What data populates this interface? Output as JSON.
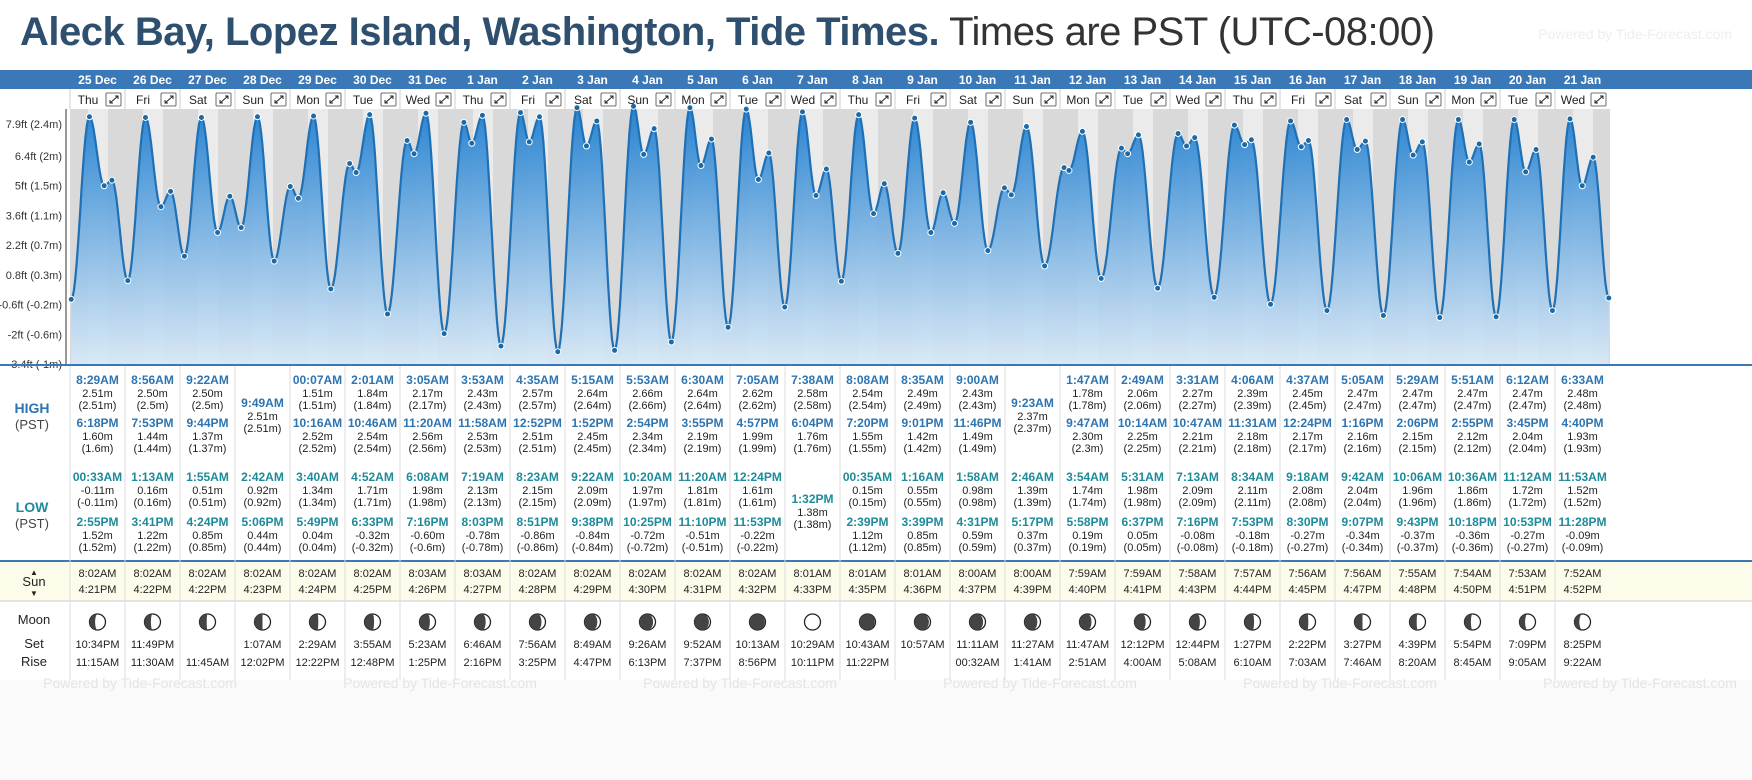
{
  "title": {
    "location": "Aleck Bay, Lopez Island, Washington, Tide Times.",
    "timezone": "Times are PST (UTC-08:00)",
    "powered": "Powered by Tide-Forecast.com"
  },
  "labels": {
    "high": "HIGH",
    "high_tz": "(PST)",
    "low": "LOW",
    "low_tz": "(PST)",
    "sun": "Sun",
    "moon": "Moon",
    "set": "Set",
    "rise": "Rise",
    "footer_powered": "Powered by Tide-Forecast.com"
  },
  "colors": {
    "header_bar": "#3a78b8",
    "curve_fill": "#2a86cf",
    "curve_line": "#1f70b5",
    "day_bg": "#ebebeb",
    "night_bg": "#d9d9d9",
    "high_text": "#2d74b0",
    "low_text": "#1d8b9a",
    "sun_row_bg": "#fdfbea"
  },
  "y_axis_labels": [
    "7.9ft (2.4m)",
    "6.4ft (2m)",
    "5ft (1.5m)",
    "3.6ft (1.1m)",
    "2.2ft (0.7m)",
    "0.8ft (0.3m)",
    "-0.6ft (-0.2m)",
    "-2ft (-0.6m)",
    "-3.4ft (-1m)"
  ],
  "y_axis_values": [
    7.9,
    6.4,
    5,
    3.6,
    2.2,
    0.8,
    -0.6,
    -2,
    -3.4
  ],
  "days": [
    {
      "date": "25 Dec",
      "dow": "Thu",
      "high1": {
        "t": "8:29AM",
        "ft": "2.51m",
        "m": "(2.51m)"
      },
      "high2": {
        "t": "6:18PM",
        "ft": "1.60m",
        "m": "(1.6m)"
      },
      "low1": {
        "t": "00:33AM",
        "ft": "-0.11m",
        "m": "(-0.11m)"
      },
      "low2": {
        "t": "2:55PM",
        "ft": "1.52m",
        "m": "(1.52m)"
      },
      "sunrise": "8:02AM",
      "sunset": "4:21PM",
      "moon_set": "10:34PM",
      "moon_rise": "11:15AM"
    },
    {
      "date": "26 Dec",
      "dow": "Fri",
      "high1": {
        "t": "8:56AM",
        "ft": "2.50m",
        "m": "(2.5m)"
      },
      "high2": {
        "t": "7:53PM",
        "ft": "1.44m",
        "m": "(1.44m)"
      },
      "low1": {
        "t": "1:13AM",
        "ft": "0.16m",
        "m": "(0.16m)"
      },
      "low2": {
        "t": "3:41PM",
        "ft": "1.22m",
        "m": "(1.22m)"
      },
      "sunrise": "8:02AM",
      "sunset": "4:22PM",
      "moon_set": "11:49PM",
      "moon_rise": "11:30AM"
    },
    {
      "date": "27 Dec",
      "dow": "Sat",
      "high1": {
        "t": "9:22AM",
        "ft": "2.50m",
        "m": "(2.5m)"
      },
      "high2": {
        "t": "9:44PM",
        "ft": "1.37m",
        "m": "(1.37m)"
      },
      "low1": {
        "t": "1:55AM",
        "ft": "0.51m",
        "m": "(0.51m)"
      },
      "low2": {
        "t": "4:24PM",
        "ft": "0.85m",
        "m": "(0.85m)"
      },
      "sunrise": "8:02AM",
      "sunset": "4:22PM",
      "moon_set": "",
      "moon_rise": "11:45AM"
    },
    {
      "date": "28 Dec",
      "dow": "Sun",
      "high1": {
        "t": "9:49AM",
        "ft": "2.51m",
        "m": "(2.51m)"
      },
      "high2": null,
      "low1": {
        "t": "2:42AM",
        "ft": "0.92m",
        "m": "(0.92m)"
      },
      "low2": {
        "t": "5:06PM",
        "ft": "0.44m",
        "m": "(0.44m)"
      },
      "sunrise": "8:02AM",
      "sunset": "4:23PM",
      "moon_set": "1:07AM",
      "moon_rise": "12:02PM"
    },
    {
      "date": "29 Dec",
      "dow": "Mon",
      "high1": {
        "t": "00:07AM",
        "ft": "1.51m",
        "m": "(1.51m)"
      },
      "high2": {
        "t": "10:16AM",
        "ft": "2.52m",
        "m": "(2.52m)"
      },
      "low1": {
        "t": "3:40AM",
        "ft": "1.34m",
        "m": "(1.34m)"
      },
      "low2": {
        "t": "5:49PM",
        "ft": "0.04m",
        "m": "(0.04m)"
      },
      "sunrise": "8:02AM",
      "sunset": "4:24PM",
      "moon_set": "2:29AM",
      "moon_rise": "12:22PM"
    },
    {
      "date": "30 Dec",
      "dow": "Tue",
      "high1": {
        "t": "2:01AM",
        "ft": "1.84m",
        "m": "(1.84m)"
      },
      "high2": {
        "t": "10:46AM",
        "ft": "2.54m",
        "m": "(2.54m)"
      },
      "low1": {
        "t": "4:52AM",
        "ft": "1.71m",
        "m": "(1.71m)"
      },
      "low2": {
        "t": "6:33PM",
        "ft": "-0.32m",
        "m": "(-0.32m)"
      },
      "sunrise": "8:02AM",
      "sunset": "4:25PM",
      "moon_set": "3:55AM",
      "moon_rise": "12:48PM"
    },
    {
      "date": "31 Dec",
      "dow": "Wed",
      "high1": {
        "t": "3:05AM",
        "ft": "2.17m",
        "m": "(2.17m)"
      },
      "high2": {
        "t": "11:20AM",
        "ft": "2.56m",
        "m": "(2.56m)"
      },
      "low1": {
        "t": "6:08AM",
        "ft": "1.98m",
        "m": "(1.98m)"
      },
      "low2": {
        "t": "7:16PM",
        "ft": "-0.60m",
        "m": "(-0.6m)"
      },
      "sunrise": "8:03AM",
      "sunset": "4:26PM",
      "moon_set": "5:23AM",
      "moon_rise": "1:25PM"
    },
    {
      "date": "1 Jan",
      "dow": "Thu",
      "high1": {
        "t": "3:53AM",
        "ft": "2.43m",
        "m": "(2.43m)"
      },
      "high2": {
        "t": "11:58AM",
        "ft": "2.53m",
        "m": "(2.53m)"
      },
      "low1": {
        "t": "7:19AM",
        "ft": "2.13m",
        "m": "(2.13m)"
      },
      "low2": {
        "t": "8:03PM",
        "ft": "-0.78m",
        "m": "(-0.78m)"
      },
      "sunrise": "8:03AM",
      "sunset": "4:27PM",
      "moon_set": "6:46AM",
      "moon_rise": "2:16PM"
    },
    {
      "date": "2 Jan",
      "dow": "Fri",
      "high1": {
        "t": "4:35AM",
        "ft": "2.57m",
        "m": "(2.57m)"
      },
      "high2": {
        "t": "12:52PM",
        "ft": "2.51m",
        "m": "(2.51m)"
      },
      "low1": {
        "t": "8:23AM",
        "ft": "2.15m",
        "m": "(2.15m)"
      },
      "low2": {
        "t": "8:51PM",
        "ft": "-0.86m",
        "m": "(-0.86m)"
      },
      "sunrise": "8:02AM",
      "sunset": "4:28PM",
      "moon_set": "7:56AM",
      "moon_rise": "3:25PM"
    },
    {
      "date": "3 Jan",
      "dow": "Sat",
      "high1": {
        "t": "5:15AM",
        "ft": "2.64m",
        "m": "(2.64m)"
      },
      "high2": {
        "t": "1:52PM",
        "ft": "2.45m",
        "m": "(2.45m)"
      },
      "low1": {
        "t": "9:22AM",
        "ft": "2.09m",
        "m": "(2.09m)"
      },
      "low2": {
        "t": "9:38PM",
        "ft": "-0.84m",
        "m": "(-0.84m)"
      },
      "sunrise": "8:02AM",
      "sunset": "4:29PM",
      "moon_set": "8:49AM",
      "moon_rise": "4:47PM"
    },
    {
      "date": "4 Jan",
      "dow": "Sun",
      "high1": {
        "t": "5:53AM",
        "ft": "2.66m",
        "m": "(2.66m)"
      },
      "high2": {
        "t": "2:54PM",
        "ft": "2.34m",
        "m": "(2.34m)"
      },
      "low1": {
        "t": "10:20AM",
        "ft": "1.97m",
        "m": "(1.97m)"
      },
      "low2": {
        "t": "10:25PM",
        "ft": "-0.72m",
        "m": "(-0.72m)"
      },
      "sunrise": "8:02AM",
      "sunset": "4:30PM",
      "moon_set": "9:26AM",
      "moon_rise": "6:13PM"
    },
    {
      "date": "5 Jan",
      "dow": "Mon",
      "high1": {
        "t": "6:30AM",
        "ft": "2.64m",
        "m": "(2.64m)"
      },
      "high2": {
        "t": "3:55PM",
        "ft": "2.19m",
        "m": "(2.19m)"
      },
      "low1": {
        "t": "11:20AM",
        "ft": "1.81m",
        "m": "(1.81m)"
      },
      "low2": {
        "t": "11:10PM",
        "ft": "-0.51m",
        "m": "(-0.51m)"
      },
      "sunrise": "8:02AM",
      "sunset": "4:31PM",
      "moon_set": "9:52AM",
      "moon_rise": "7:37PM"
    },
    {
      "date": "6 Jan",
      "dow": "Tue",
      "high1": {
        "t": "7:05AM",
        "ft": "2.62m",
        "m": "(2.62m)"
      },
      "high2": {
        "t": "4:57PM",
        "ft": "1.99m",
        "m": "(1.99m)"
      },
      "low1": {
        "t": "12:24PM",
        "ft": "1.61m",
        "m": "(1.61m)"
      },
      "low2": {
        "t": "11:53PM",
        "ft": "-0.22m",
        "m": "(-0.22m)"
      },
      "sunrise": "8:02AM",
      "sunset": "4:32PM",
      "moon_set": "10:13AM",
      "moon_rise": "8:56PM"
    },
    {
      "date": "7 Jan",
      "dow": "Wed",
      "high1": {
        "t": "7:38AM",
        "ft": "2.58m",
        "m": "(2.58m)"
      },
      "high2": {
        "t": "6:04PM",
        "ft": "1.76m",
        "m": "(1.76m)"
      },
      "low1": {
        "t": "1:32PM",
        "ft": "1.38m",
        "m": "(1.38m)"
      },
      "low2": null,
      "sunrise": "8:01AM",
      "sunset": "4:33PM",
      "moon_set": "10:29AM",
      "moon_rise": "10:11PM"
    },
    {
      "date": "8 Jan",
      "dow": "Thu",
      "high1": {
        "t": "8:08AM",
        "ft": "2.54m",
        "m": "(2.54m)"
      },
      "high2": {
        "t": "7:20PM",
        "ft": "1.55m",
        "m": "(1.55m)"
      },
      "low1": {
        "t": "00:35AM",
        "ft": "0.15m",
        "m": "(0.15m)"
      },
      "low2": {
        "t": "2:39PM",
        "ft": "1.12m",
        "m": "(1.12m)"
      },
      "sunrise": "8:01AM",
      "sunset": "4:35PM",
      "moon_set": "10:43AM",
      "moon_rise": "11:22PM"
    },
    {
      "date": "9 Jan",
      "dow": "Fri",
      "high1": {
        "t": "8:35AM",
        "ft": "2.49m",
        "m": "(2.49m)"
      },
      "high2": {
        "t": "9:01PM",
        "ft": "1.42m",
        "m": "(1.42m)"
      },
      "low1": {
        "t": "1:16AM",
        "ft": "0.55m",
        "m": "(0.55m)"
      },
      "low2": {
        "t": "3:39PM",
        "ft": "0.85m",
        "m": "(0.85m)"
      },
      "sunrise": "8:01AM",
      "sunset": "4:36PM",
      "moon_set": "10:57AM",
      "moon_rise": ""
    },
    {
      "date": "10 Jan",
      "dow": "Sat",
      "high1": {
        "t": "9:00AM",
        "ft": "2.43m",
        "m": "(2.43m)"
      },
      "high2": {
        "t": "11:46PM",
        "ft": "1.49m",
        "m": "(1.49m)"
      },
      "low1": {
        "t": "1:58AM",
        "ft": "0.98m",
        "m": "(0.98m)"
      },
      "low2": {
        "t": "4:31PM",
        "ft": "0.59m",
        "m": "(0.59m)"
      },
      "sunrise": "8:00AM",
      "sunset": "4:37PM",
      "moon_set": "11:11AM",
      "moon_rise": "00:32AM"
    },
    {
      "date": "11 Jan",
      "dow": "Sun",
      "high1": {
        "t": "9:23AM",
        "ft": "2.37m",
        "m": "(2.37m)"
      },
      "high2": null,
      "low1": {
        "t": "2:46AM",
        "ft": "1.39m",
        "m": "(1.39m)"
      },
      "low2": {
        "t": "5:17PM",
        "ft": "0.37m",
        "m": "(0.37m)"
      },
      "sunrise": "8:00AM",
      "sunset": "4:39PM",
      "moon_set": "11:27AM",
      "moon_rise": "1:41AM"
    },
    {
      "date": "12 Jan",
      "dow": "Mon",
      "high1": {
        "t": "1:47AM",
        "ft": "1.78m",
        "m": "(1.78m)"
      },
      "high2": {
        "t": "9:47AM",
        "ft": "2.30m",
        "m": "(2.3m)"
      },
      "low1": {
        "t": "3:54AM",
        "ft": "1.74m",
        "m": "(1.74m)"
      },
      "low2": {
        "t": "5:58PM",
        "ft": "0.19m",
        "m": "(0.19m)"
      },
      "sunrise": "7:59AM",
      "sunset": "4:40PM",
      "moon_set": "11:47AM",
      "moon_rise": "2:51AM"
    },
    {
      "date": "13 Jan",
      "dow": "Tue",
      "high1": {
        "t": "2:49AM",
        "ft": "2.06m",
        "m": "(2.06m)"
      },
      "high2": {
        "t": "10:14AM",
        "ft": "2.25m",
        "m": "(2.25m)"
      },
      "low1": {
        "t": "5:31AM",
        "ft": "1.98m",
        "m": "(1.98m)"
      },
      "low2": {
        "t": "6:37PM",
        "ft": "0.05m",
        "m": "(0.05m)"
      },
      "sunrise": "7:59AM",
      "sunset": "4:41PM",
      "moon_set": "12:12PM",
      "moon_rise": "4:00AM"
    },
    {
      "date": "14 Jan",
      "dow": "Wed",
      "high1": {
        "t": "3:31AM",
        "ft": "2.27m",
        "m": "(2.27m)"
      },
      "high2": {
        "t": "10:47AM",
        "ft": "2.21m",
        "m": "(2.21m)"
      },
      "low1": {
        "t": "7:13AM",
        "ft": "2.09m",
        "m": "(2.09m)"
      },
      "low2": {
        "t": "7:16PM",
        "ft": "-0.08m",
        "m": "(-0.08m)"
      },
      "sunrise": "7:58AM",
      "sunset": "4:43PM",
      "moon_set": "12:44PM",
      "moon_rise": "5:08AM"
    },
    {
      "date": "15 Jan",
      "dow": "Thu",
      "high1": {
        "t": "4:06AM",
        "ft": "2.39m",
        "m": "(2.39m)"
      },
      "high2": {
        "t": "11:31AM",
        "ft": "2.18m",
        "m": "(2.18m)"
      },
      "low1": {
        "t": "8:34AM",
        "ft": "2.11m",
        "m": "(2.11m)"
      },
      "low2": {
        "t": "7:53PM",
        "ft": "-0.18m",
        "m": "(-0.18m)"
      },
      "sunrise": "7:57AM",
      "sunset": "4:44PM",
      "moon_set": "1:27PM",
      "moon_rise": "6:10AM"
    },
    {
      "date": "16 Jan",
      "dow": "Fri",
      "high1": {
        "t": "4:37AM",
        "ft": "2.45m",
        "m": "(2.45m)"
      },
      "high2": {
        "t": "12:24PM",
        "ft": "2.17m",
        "m": "(2.17m)"
      },
      "low1": {
        "t": "9:18AM",
        "ft": "2.08m",
        "m": "(2.08m)"
      },
      "low2": {
        "t": "8:30PM",
        "ft": "-0.27m",
        "m": "(-0.27m)"
      },
      "sunrise": "7:56AM",
      "sunset": "4:45PM",
      "moon_set": "2:22PM",
      "moon_rise": "7:03AM"
    },
    {
      "date": "17 Jan",
      "dow": "Sat",
      "high1": {
        "t": "5:05AM",
        "ft": "2.47m",
        "m": "(2.47m)"
      },
      "high2": {
        "t": "1:16PM",
        "ft": "2.16m",
        "m": "(2.16m)"
      },
      "low1": {
        "t": "9:42AM",
        "ft": "2.04m",
        "m": "(2.04m)"
      },
      "low2": {
        "t": "9:07PM",
        "ft": "-0.34m",
        "m": "(-0.34m)"
      },
      "sunrise": "7:56AM",
      "sunset": "4:47PM",
      "moon_set": "3:27PM",
      "moon_rise": "7:46AM"
    },
    {
      "date": "18 Jan",
      "dow": "Sun",
      "high1": {
        "t": "5:29AM",
        "ft": "2.47m",
        "m": "(2.47m)"
      },
      "high2": {
        "t": "2:06PM",
        "ft": "2.15m",
        "m": "(2.15m)"
      },
      "low1": {
        "t": "10:06AM",
        "ft": "1.96m",
        "m": "(1.96m)"
      },
      "low2": {
        "t": "9:43PM",
        "ft": "-0.37m",
        "m": "(-0.37m)"
      },
      "sunrise": "7:55AM",
      "sunset": "4:48PM",
      "moon_set": "4:39PM",
      "moon_rise": "8:20AM"
    },
    {
      "date": "19 Jan",
      "dow": "Mon",
      "high1": {
        "t": "5:51AM",
        "ft": "2.47m",
        "m": "(2.47m)"
      },
      "high2": {
        "t": "2:55PM",
        "ft": "2.12m",
        "m": "(2.12m)"
      },
      "low1": {
        "t": "10:36AM",
        "ft": "1.86m",
        "m": "(1.86m)"
      },
      "low2": {
        "t": "10:18PM",
        "ft": "-0.36m",
        "m": "(-0.36m)"
      },
      "sunrise": "7:54AM",
      "sunset": "4:50PM",
      "moon_set": "5:54PM",
      "moon_rise": "8:45AM"
    },
    {
      "date": "20 Jan",
      "dow": "Tue",
      "high1": {
        "t": "6:12AM",
        "ft": "2.47m",
        "m": "(2.47m)"
      },
      "high2": {
        "t": "3:45PM",
        "ft": "2.04m",
        "m": "(2.04m)"
      },
      "low1": {
        "t": "11:12AM",
        "ft": "1.72m",
        "m": "(1.72m)"
      },
      "low2": {
        "t": "10:53PM",
        "ft": "-0.27m",
        "m": "(-0.27m)"
      },
      "sunrise": "7:53AM",
      "sunset": "4:51PM",
      "moon_set": "7:09PM",
      "moon_rise": "9:05AM"
    },
    {
      "date": "21 Jan",
      "dow": "Wed",
      "high1": {
        "t": "6:33AM",
        "ft": "2.48m",
        "m": "(2.48m)"
      },
      "high2": {
        "t": "4:40PM",
        "ft": "1.93m",
        "m": "(1.93m)"
      },
      "low1": {
        "t": "11:53AM",
        "ft": "1.52m",
        "m": "(1.52m)"
      },
      "low2": {
        "t": "11:28PM",
        "ft": "-0.09m",
        "m": "(-0.09m)"
      },
      "sunrise": "7:52AM",
      "sunset": "4:52PM",
      "moon_set": "8:25PM",
      "moon_rise": "9:22AM"
    }
  ],
  "moon_phases": [
    0.35,
    0.4,
    0.45,
    0.5,
    0.55,
    0.6,
    0.65,
    0.7,
    0.75,
    0.8,
    0.85,
    0.9,
    0.95,
    1.0,
    0.95,
    0.9,
    0.85,
    0.8,
    0.75,
    0.7,
    0.65,
    0.6,
    0.55,
    0.5,
    0.45,
    0.4,
    0.35,
    0.3
  ]
}
